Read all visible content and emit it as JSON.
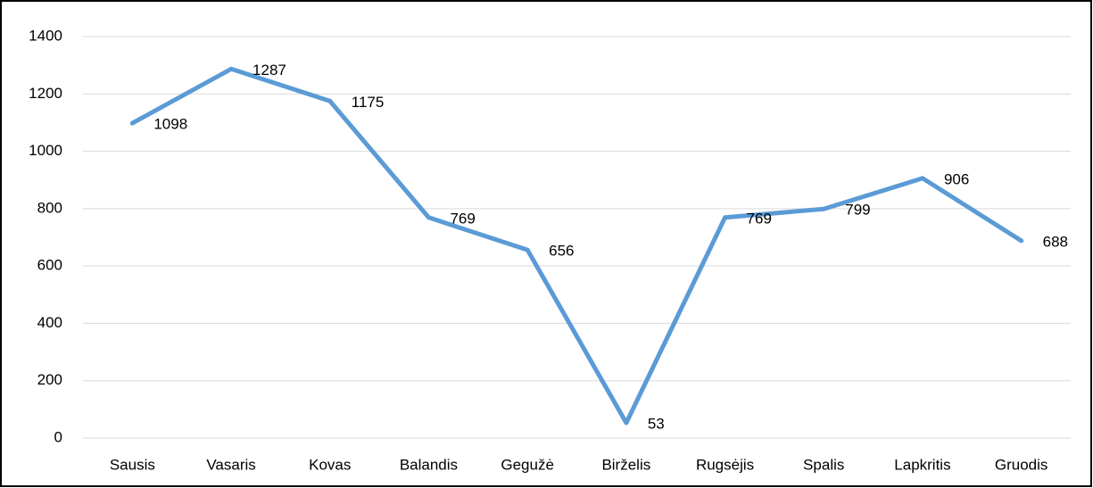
{
  "chart_data": {
    "type": "line",
    "categories": [
      "Sausis",
      "Vasaris",
      "Kovas",
      "Balandis",
      "Gegužė",
      "Birželis",
      "Rugsėjis",
      "Spalis",
      "Lapkritis",
      "Gruodis"
    ],
    "values": [
      1098,
      1287,
      1175,
      769,
      656,
      53,
      769,
      799,
      906,
      688
    ],
    "color": "#5b9bd5",
    "ylim": [
      0,
      1400
    ],
    "yticks": [
      0,
      200,
      400,
      600,
      800,
      1000,
      1200,
      1400
    ],
    "grid": true
  }
}
